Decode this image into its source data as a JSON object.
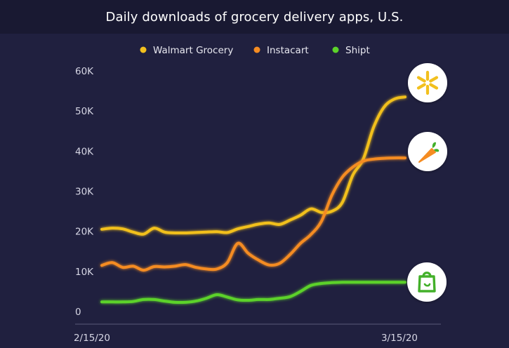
{
  "chart_data": {
    "type": "line",
    "title": "Daily downloads of grocery delivery apps, U.S.",
    "xlabel": "",
    "ylabel": "",
    "x_tick_labels": [
      "2/15/20",
      "3/15/20"
    ],
    "y_ticks": [
      0,
      10000,
      20000,
      30000,
      40000,
      50000,
      60000
    ],
    "y_tick_labels": [
      "0",
      "10K",
      "20K",
      "30K",
      "40K",
      "50K",
      "60K"
    ],
    "ylim": [
      0,
      60000
    ],
    "xlim": [
      0,
      29
    ],
    "legend_position": "top",
    "series": [
      {
        "name": "Walmart Grocery",
        "color": "#f2c01e",
        "icon": "walmart-spark-icon",
        "x": [
          0,
          1,
          2,
          3,
          4,
          5,
          6,
          7,
          8,
          9,
          10,
          11,
          12,
          13,
          14,
          15,
          16,
          17,
          18,
          19,
          20,
          21,
          22,
          23,
          24,
          25,
          26,
          27,
          28,
          29
        ],
        "values": [
          20500,
          20800,
          20600,
          19800,
          19300,
          20800,
          19800,
          19600,
          19600,
          19700,
          19800,
          19900,
          19700,
          20600,
          21200,
          21800,
          22100,
          21700,
          22800,
          24000,
          25600,
          24700,
          25000,
          27200,
          34000,
          38000,
          46000,
          51000,
          53000,
          53500
        ]
      },
      {
        "name": "Instacart",
        "color": "#f58c22",
        "icon": "instacart-carrot-icon",
        "x": [
          0,
          1,
          2,
          3,
          4,
          5,
          6,
          7,
          8,
          9,
          10,
          11,
          12,
          13,
          14,
          15,
          16,
          17,
          18,
          19,
          20,
          21,
          22,
          23,
          24,
          25,
          26,
          27,
          28,
          29
        ],
        "values": [
          11500,
          12200,
          11000,
          11300,
          10300,
          11200,
          11100,
          11300,
          11700,
          11000,
          10600,
          10600,
          12200,
          17000,
          14500,
          12800,
          11600,
          12000,
          14200,
          17000,
          19200,
          22500,
          29000,
          33500,
          36000,
          37500,
          38000,
          38200,
          38300,
          38300
        ]
      },
      {
        "name": "Shipt",
        "color": "#5cd22a",
        "icon": "shipt-bag-icon",
        "x": [
          0,
          1,
          2,
          3,
          4,
          5,
          6,
          7,
          8,
          9,
          10,
          11,
          12,
          13,
          14,
          15,
          16,
          17,
          18,
          19,
          20,
          21,
          22,
          23,
          24,
          25,
          26,
          27,
          28,
          29
        ],
        "values": [
          2400,
          2400,
          2400,
          2500,
          3000,
          3000,
          2600,
          2300,
          2300,
          2600,
          3300,
          4200,
          3600,
          2900,
          2800,
          3000,
          3000,
          3300,
          3700,
          5000,
          6500,
          7000,
          7200,
          7300,
          7300,
          7300,
          7300,
          7300,
          7300,
          7300
        ]
      }
    ]
  }
}
